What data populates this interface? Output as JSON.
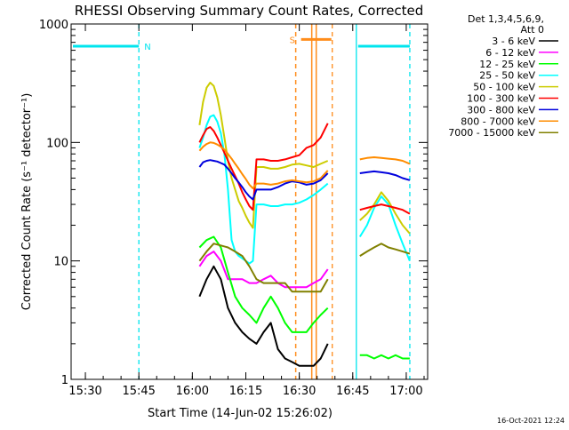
{
  "chart_data": {
    "type": "line",
    "title": "RHESSI Observing Summary Count Rates, Corrected",
    "xlabel": "Start Time (14-Jun-02 15:26:02)",
    "ylabel": "Corrected Count Rate (s⁻¹ detector⁻¹)",
    "y_scale": "log",
    "ylim": [
      1,
      1000
    ],
    "xlim": [
      "15:26",
      "17:06"
    ],
    "x_ticks": [
      "15:30",
      "15:45",
      "16:00",
      "16:15",
      "16:30",
      "16:45",
      "17:00"
    ],
    "y_ticks": [
      "1",
      "10",
      "100",
      "1000"
    ],
    "legend_title": [
      "Det 1,3,4,5,6,9,",
      "Att 0"
    ],
    "legend_position": "right",
    "timestamp": "16-Oct-2021 12:24",
    "series": [
      {
        "name": "3 - 6 keV",
        "color": "#000000",
        "segments": [
          {
            "x": [
              "16:02",
              "16:04",
              "16:06",
              "16:08",
              "16:10",
              "16:12",
              "16:14",
              "16:16",
              "16:18",
              "16:20",
              "16:22",
              "16:24",
              "16:26",
              "16:28",
              "16:30",
              "16:32",
              "16:34",
              "16:36",
              "16:38"
            ],
            "y": [
              5,
              7,
              9,
              7,
              4,
              3,
              2.5,
              2.2,
              2,
              2.5,
              3,
              1.8,
              1.5,
              1.4,
              1.3,
              1.3,
              1.3,
              1.5,
              2
            ]
          }
        ]
      },
      {
        "name": "6 - 12 keV",
        "color": "#ff00ff",
        "segments": [
          {
            "x": [
              "16:02",
              "16:04",
              "16:06",
              "16:08",
              "16:10",
              "16:12",
              "16:14",
              "16:16",
              "16:18",
              "16:20",
              "16:22",
              "16:24",
              "16:26",
              "16:28",
              "16:30",
              "16:32",
              "16:34",
              "16:36",
              "16:38"
            ],
            "y": [
              9,
              11,
              12,
              10,
              7,
              7,
              7,
              6.5,
              6.5,
              7,
              7.5,
              6.5,
              6,
              6,
              6,
              6,
              6.5,
              7,
              8.5
            ]
          }
        ]
      },
      {
        "name": "12 - 25 keV",
        "color": "#00ff00",
        "segments": [
          {
            "x": [
              "16:02",
              "16:04",
              "16:06",
              "16:08",
              "16:10",
              "16:12",
              "16:14",
              "16:16",
              "16:18",
              "16:20",
              "16:22",
              "16:24",
              "16:26",
              "16:28",
              "16:30",
              "16:32",
              "16:34",
              "16:36",
              "16:38"
            ],
            "y": [
              13,
              15,
              16,
              13,
              8,
              5,
              4,
              3.5,
              3,
              4,
              5,
              4,
              3,
              2.5,
              2.5,
              2.5,
              3,
              3.5,
              4
            ]
          },
          {
            "x": [
              "16:47",
              "16:49",
              "16:51",
              "16:53",
              "16:55",
              "16:57",
              "16:59",
              "17:01"
            ],
            "y": [
              1.6,
              1.6,
              1.5,
              1.6,
              1.5,
              1.6,
              1.5,
              1.5
            ]
          }
        ]
      },
      {
        "name": "25 - 50 keV",
        "color": "#00ffff",
        "segments": [
          {
            "x": [
              "16:02",
              "16:03",
              "16:04",
              "16:05",
              "16:06",
              "16:07",
              "16:08",
              "16:09",
              "16:10",
              "16:11",
              "16:12",
              "16:13",
              "16:14",
              "16:15",
              "16:16",
              "16:17",
              "16:18",
              "16:20",
              "16:22",
              "16:24",
              "16:26",
              "16:28",
              "16:30",
              "16:32",
              "16:34",
              "16:36",
              "16:38"
            ],
            "y": [
              90,
              110,
              140,
              165,
              170,
              150,
              120,
              80,
              40,
              15,
              12,
              11,
              10.5,
              10,
              9.5,
              10,
              30,
              30,
              29,
              29,
              30,
              30,
              31,
              33,
              36,
              40,
              45
            ]
          },
          {
            "x": [
              "16:47",
              "16:49",
              "16:51",
              "16:53",
              "16:55",
              "16:57",
              "16:59",
              "17:01"
            ],
            "y": [
              16,
              20,
              28,
              35,
              30,
              20,
              14,
              10
            ]
          }
        ]
      },
      {
        "name": "50 - 100 keV",
        "color": "#cccc00",
        "segments": [
          {
            "x": [
              "16:02",
              "16:03",
              "16:04",
              "16:05",
              "16:06",
              "16:07",
              "16:08",
              "16:09",
              "16:10",
              "16:11",
              "16:12",
              "16:13",
              "16:14",
              "16:15",
              "16:16",
              "16:17",
              "16:18",
              "16:20",
              "16:22",
              "16:24",
              "16:26",
              "16:28",
              "16:30",
              "16:32",
              "16:34",
              "16:36",
              "16:38"
            ],
            "y": [
              140,
              220,
              290,
              320,
              300,
              240,
              170,
              110,
              70,
              50,
              40,
              32,
              28,
              24,
              21,
              19,
              62,
              62,
              60,
              60,
              62,
              65,
              66,
              64,
              62,
              66,
              70
            ]
          },
          {
            "x": [
              "16:47",
              "16:49",
              "16:51",
              "16:53",
              "16:55",
              "16:57",
              "16:59",
              "17:01"
            ],
            "y": [
              22,
              25,
              30,
              38,
              32,
              25,
              20,
              17
            ]
          }
        ]
      },
      {
        "name": "100 - 300 keV",
        "color": "#ff0000",
        "segments": [
          {
            "x": [
              "16:02",
              "16:03",
              "16:04",
              "16:05",
              "16:06",
              "16:07",
              "16:08",
              "16:09",
              "16:10",
              "16:11",
              "16:12",
              "16:13",
              "16:14",
              "16:15",
              "16:16",
              "16:17",
              "16:18",
              "16:20",
              "16:22",
              "16:24",
              "16:26",
              "16:28",
              "16:30",
              "16:32",
              "16:34",
              "16:36",
              "16:38"
            ],
            "y": [
              100,
              115,
              130,
              135,
              125,
              110,
              95,
              82,
              70,
              60,
              52,
              45,
              38,
              33,
              29,
              27,
              72,
              72,
              70,
              70,
              72,
              75,
              78,
              90,
              95,
              110,
              145
            ]
          },
          {
            "x": [
              "16:47",
              "16:49",
              "16:51",
              "16:53",
              "16:55",
              "16:57",
              "16:59",
              "17:01"
            ],
            "y": [
              27,
              28,
              29,
              30,
              29,
              28,
              27,
              25
            ]
          }
        ]
      },
      {
        "name": "300 - 800 keV",
        "color": "#0000dd",
        "segments": [
          {
            "x": [
              "16:02",
              "16:03",
              "16:04",
              "16:05",
              "16:06",
              "16:07",
              "16:08",
              "16:09",
              "16:10",
              "16:11",
              "16:12",
              "16:13",
              "16:14",
              "16:15",
              "16:16",
              "16:17",
              "16:18",
              "16:20",
              "16:22",
              "16:24",
              "16:26",
              "16:28",
              "16:30",
              "16:32",
              "16:34",
              "16:36",
              "16:38"
            ],
            "y": [
              62,
              68,
              70,
              71,
              70,
              69,
              67,
              65,
              60,
              55,
              50,
              46,
              42,
              38,
              35,
              33,
              40,
              40,
              40,
              42,
              45,
              47,
              46,
              44,
              45,
              48,
              55
            ]
          },
          {
            "x": [
              "16:47",
              "16:49",
              "16:51",
              "16:53",
              "16:55",
              "16:57",
              "16:59",
              "17:01"
            ],
            "y": [
              55,
              56,
              57,
              56,
              55,
              53,
              50,
              48
            ]
          }
        ]
      },
      {
        "name": "800 - 7000 keV",
        "color": "#ff8c00",
        "segments": [
          {
            "x": [
              "16:02",
              "16:03",
              "16:04",
              "16:05",
              "16:06",
              "16:07",
              "16:08",
              "16:09",
              "16:10",
              "16:11",
              "16:12",
              "16:13",
              "16:14",
              "16:15",
              "16:16",
              "16:17",
              "16:18",
              "16:20",
              "16:22",
              "16:24",
              "16:26",
              "16:28",
              "16:30",
              "16:32",
              "16:34",
              "16:36",
              "16:38"
            ],
            "y": [
              85,
              92,
              97,
              100,
              99,
              96,
              92,
              87,
              80,
              73,
              66,
              60,
              54,
              49,
              44,
              41,
              45,
              45,
              44,
              45,
              47,
              48,
              47,
              46,
              47,
              50,
              58
            ]
          },
          {
            "x": [
              "16:47",
              "16:49",
              "16:51",
              "16:53",
              "16:55",
              "16:57",
              "16:59",
              "17:01"
            ],
            "y": [
              72,
              74,
              75,
              74,
              73,
              72,
              70,
              66
            ]
          }
        ]
      },
      {
        "name": "7000 - 15000 keV",
        "color": "#808000",
        "segments": [
          {
            "x": [
              "16:02",
              "16:04",
              "16:06",
              "16:08",
              "16:10",
              "16:12",
              "16:14",
              "16:16",
              "16:18",
              "16:20",
              "16:22",
              "16:24",
              "16:26",
              "16:28",
              "16:30",
              "16:32",
              "16:34",
              "16:36",
              "16:38"
            ],
            "y": [
              10,
              12,
              14,
              13.5,
              13,
              12,
              11,
              9,
              7,
              6.5,
              6.5,
              6.5,
              6.5,
              5.5,
              5.5,
              5.5,
              5.5,
              5.5,
              7
            ]
          },
          {
            "x": [
              "16:47",
              "16:49",
              "16:51",
              "16:53",
              "16:55",
              "16:57",
              "16:59",
              "17:01"
            ],
            "y": [
              11,
              12,
              13,
              14,
              13,
              12.5,
              12,
              11.5
            ]
          }
        ]
      }
    ],
    "annotations": {
      "night_label": "N",
      "saa_label": "S",
      "night_periods": [
        [
          "15:26",
          "15:45"
        ],
        [
          "16:46",
          "17:01"
        ]
      ],
      "saa_period": [
        "16:30:30",
        "16:38"
      ],
      "attenuator_lines": [
        "16:29:00",
        "16:33:30",
        "16:34:45"
      ],
      "colors": {
        "night": "#00e5ee",
        "saa": "#ff8c1a"
      }
    }
  }
}
